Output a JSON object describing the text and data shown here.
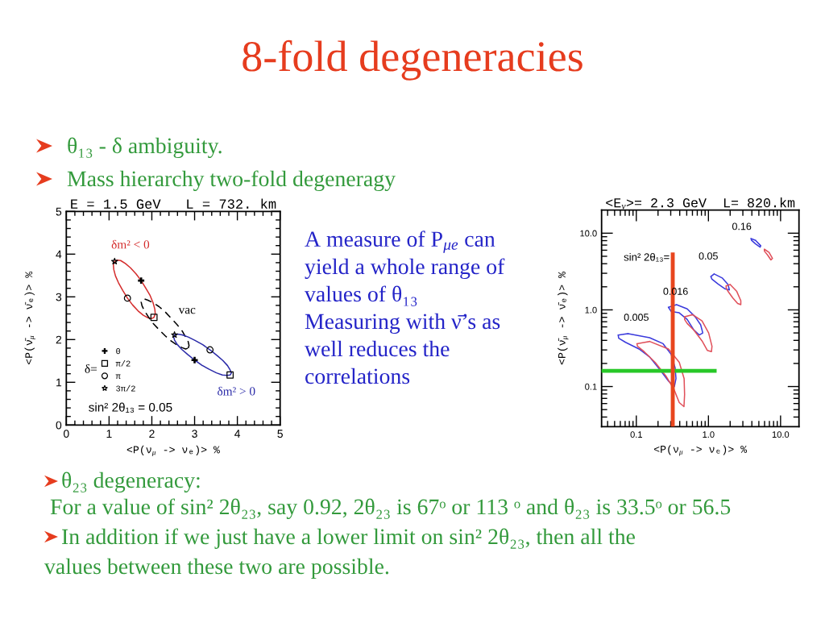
{
  "chart_data": [
    {
      "type": "other",
      "title": "8-fold degeneracies",
      "annotations": [
        "θ₁₃ - δ ambiguity.",
        "Mass hierarchy two-fold degeneragy",
        "A measure of P$_{μe}$ can",
        "yield a whole range of",
        "values of θ₁₃",
        "Measuring with ν̄’s as",
        "well reduces the",
        "correlations",
        "θ₂₃ degeneracy:",
        "For a value of sin² 2θ₂₃, say 0.92, 2θ₂₃ is 67ᵒ or 113 ᵒ and θ₂₃ is 33.5ᵒ or 56.5",
        "In addition if we just have a lower limit on sin² 2θ₂₃, then all the",
        "values between these two are possible."
      ]
    },
    {
      "type": "line",
      "title": "E = 1.5 GeV   L = 732. km",
      "xlabel": "<P(ν$_{μ}$ -> νₑ)> %",
      "ylabel": "<P(ν̄$_{μ}$ -> ν̄ₑ)> %",
      "xlim": [
        0,
        5
      ],
      "ylim": [
        0,
        5
      ],
      "xticks": [
        0,
        {
          "value": 0.2,
          "label": null
        },
        {
          "value": 0.4,
          "label": null
        },
        {
          "value": 0.6,
          "label": null
        },
        {
          "value": 0.8,
          "label": null
        },
        1,
        {
          "value": 1.2,
          "label": null
        },
        {
          "value": 1.4,
          "label": null
        },
        {
          "value": 1.6,
          "label": null
        },
        {
          "value": 1.8,
          "label": null
        },
        2,
        {
          "value": 2.2,
          "label": null
        },
        {
          "value": 2.4,
          "label": null
        },
        {
          "value": 2.6,
          "label": null
        },
        {
          "value": 2.8,
          "label": null
        },
        3,
        {
          "value": 3.2,
          "label": null
        },
        {
          "value": 3.4,
          "label": null
        },
        {
          "value": 3.6,
          "label": null
        },
        {
          "value": 3.8,
          "label": null
        },
        4,
        {
          "value": 4.2,
          "label": null
        },
        {
          "value": 4.4,
          "label": null
        },
        {
          "value": 4.6,
          "label": null
        },
        {
          "value": 4.8,
          "label": null
        },
        5
      ],
      "yticks": [
        0,
        {
          "value": 0.2,
          "label": null
        },
        {
          "value": 0.4,
          "label": null
        },
        {
          "value": 0.6,
          "label": null
        },
        {
          "value": 0.8,
          "label": null
        },
        1,
        {
          "value": 1.2,
          "label": null
        },
        {
          "value": 1.4,
          "label": null
        },
        {
          "value": 1.6,
          "label": null
        },
        {
          "value": 1.8,
          "label": null
        },
        2,
        {
          "value": 2.2,
          "label": null
        },
        {
          "value": 2.4,
          "label": null
        },
        {
          "value": 2.6,
          "label": null
        },
        {
          "value": 2.8,
          "label": null
        },
        3,
        {
          "value": 3.2,
          "label": null
        },
        {
          "value": 3.4,
          "label": null
        },
        {
          "value": 3.6,
          "label": null
        },
        {
          "value": 3.8,
          "label": null
        },
        4,
        {
          "value": 4.2,
          "label": null
        },
        {
          "value": 4.4,
          "label": null
        },
        {
          "value": 4.6,
          "label": null
        },
        {
          "value": 4.8,
          "label": null
        },
        5
      ],
      "series": [
        {
          "name": "δm² < 0",
          "color": "#d42c2c",
          "x": [
            1.75,
            1.86,
            1.96,
            2.03,
            2.07,
            2.08,
            2.05,
            1.99,
            1.91,
            1.8,
            1.68,
            1.55,
            1.43,
            1.32,
            1.22,
            1.15,
            1.11,
            1.1,
            1.13,
            1.19,
            1.27,
            1.38,
            1.5,
            1.63,
            1.75,
            1.86
          ],
          "values": [
            3.38,
            3.2,
            3.03,
            2.86,
            2.71,
            2.6,
            2.52,
            2.49,
            2.51,
            2.57,
            2.67,
            2.81,
            2.97,
            3.15,
            3.33,
            3.49,
            3.64,
            3.76,
            3.83,
            3.86,
            3.85,
            3.78,
            3.68,
            3.54,
            3.38,
            3.2
          ]
        },
        {
          "name": "vac",
          "color": "#000000",
          "line_style": "dashed",
          "x": [
            2.85,
            2.87,
            2.85,
            2.79,
            2.71,
            2.59,
            2.45,
            2.31,
            2.17,
            2.03,
            1.91,
            1.83,
            1.77,
            1.75,
            1.77,
            1.83,
            1.92,
            2.03,
            2.17,
            2.31,
            2.46,
            2.59,
            2.71,
            2.79,
            2.85,
            2.87
          ],
          "values": [
            1.8,
            1.86,
            1.95,
            2.06,
            2.2,
            2.35,
            2.5,
            2.65,
            2.77,
            2.86,
            2.92,
            2.95,
            2.93,
            2.88,
            2.79,
            2.67,
            2.53,
            2.38,
            2.23,
            2.09,
            1.96,
            1.87,
            1.81,
            1.78,
            1.8,
            1.86
          ]
        },
        {
          "name": "δm² > 0",
          "color": "#2a2aa8",
          "x": [
            3.0,
            3.17,
            3.35,
            3.51,
            3.65,
            3.76,
            3.83,
            3.86,
            3.83,
            3.77,
            3.66,
            3.52,
            3.36,
            3.19,
            3.01,
            2.85,
            2.71,
            2.6,
            2.53,
            2.51,
            2.53,
            2.59,
            2.7,
            2.84,
            3.0,
            3.17
          ],
          "values": [
            1.52,
            1.4,
            1.3,
            1.22,
            1.17,
            1.16,
            1.17,
            1.22,
            1.29,
            1.39,
            1.51,
            1.63,
            1.76,
            1.88,
            1.98,
            2.06,
            2.11,
            2.13,
            2.11,
            2.06,
            1.99,
            1.89,
            1.77,
            1.65,
            1.52,
            1.4
          ]
        },
        {
          "name": "0",
          "type": "scatter",
          "marker": "cross",
          "color": "#000000",
          "x": [
            1.75,
            3.0
          ],
          "values": [
            3.38,
            1.52
          ]
        },
        {
          "name": "π/2",
          "type": "scatter",
          "marker": "square",
          "color": "#000000",
          "x": [
            2.05,
            3.83
          ],
          "values": [
            2.52,
            1.17
          ]
        },
        {
          "name": "π",
          "type": "scatter",
          "marker": "circle",
          "color": "#000000",
          "x": [
            1.43,
            3.36
          ],
          "values": [
            2.97,
            1.76
          ]
        },
        {
          "name": "3π/2",
          "type": "scatter",
          "marker": "star",
          "color": "#000000",
          "x": [
            1.13,
            2.53
          ],
          "values": [
            3.83,
            2.11
          ]
        }
      ],
      "legend": "bottom left",
      "legend_title": "δ=",
      "annotations": [
        "sin² 2θ₁₃ = 0.05"
      ]
    },
    {
      "type": "line",
      "title": "<E$_{ν}$>= 2.3 GeV  L= 820.km",
      "xlabel": "<P(ν$_{μ}$ -> νₑ)> %",
      "ylabel": "<P(ν̄$_{μ}$ -> ν̄ₑ)> %",
      "log": "xy",
      "xlim": [
        0.033,
        18
      ],
      "ylim": [
        0.03,
        20
      ],
      "xticks": [
        {
          "value": 0.04,
          "label": null
        },
        {
          "value": 0.05,
          "label": null
        },
        {
          "value": 0.06,
          "label": null
        },
        {
          "value": 0.07,
          "label": null
        },
        {
          "value": 0.08,
          "label": null
        },
        {
          "value": 0.09,
          "label": null
        },
        0.1,
        {
          "value": 0.2,
          "label": null
        },
        {
          "value": 0.3,
          "label": null
        },
        {
          "value": 0.4,
          "label": null
        },
        {
          "value": 0.5,
          "label": null
        },
        {
          "value": 0.6,
          "label": null
        },
        {
          "value": 0.7,
          "label": null
        },
        {
          "value": 0.8,
          "label": null
        },
        {
          "value": 0.9,
          "label": null
        },
        {
          "value": 1,
          "label": "1.0"
        },
        {
          "value": 2,
          "label": null
        },
        {
          "value": 3,
          "label": null
        },
        {
          "value": 4,
          "label": null
        },
        {
          "value": 5,
          "label": null
        },
        {
          "value": 6,
          "label": null
        },
        {
          "value": 7,
          "label": null
        },
        {
          "value": 8,
          "label": null
        },
        {
          "value": 9,
          "label": null
        },
        {
          "value": 10,
          "label": "10.0"
        }
      ],
      "yticks": [
        {
          "value": 0.04,
          "label": null
        },
        {
          "value": 0.05,
          "label": null
        },
        {
          "value": 0.06,
          "label": null
        },
        {
          "value": 0.07,
          "label": null
        },
        {
          "value": 0.08,
          "label": null
        },
        {
          "value": 0.09,
          "label": null
        },
        0.1,
        {
          "value": 0.2,
          "label": null
        },
        {
          "value": 0.3,
          "label": null
        },
        {
          "value": 0.4,
          "label": null
        },
        {
          "value": 0.5,
          "label": null
        },
        {
          "value": 0.6,
          "label": null
        },
        {
          "value": 0.7,
          "label": null
        },
        {
          "value": 0.8,
          "label": null
        },
        {
          "value": 0.9,
          "label": null
        },
        {
          "value": 1,
          "label": "1.0"
        },
        {
          "value": 2,
          "label": null
        },
        {
          "value": 3,
          "label": null
        },
        {
          "value": 4,
          "label": null
        },
        {
          "value": 5,
          "label": null
        },
        {
          "value": 6,
          "label": null
        },
        {
          "value": 7,
          "label": null
        },
        {
          "value": 8,
          "label": null
        },
        {
          "value": 9,
          "label": null
        },
        {
          "value": 10,
          "label": "10.0"
        }
      ],
      "series": [
        {
          "color": "#3a3adc",
          "x": [
            0.056,
            0.077,
            0.153,
            0.235,
            0.304,
            0.345,
            0.355,
            0.337,
            0.279,
            0.216,
            0.153,
            0.109,
            0.071,
            0.057,
            0.056,
            0.077
          ],
          "values": [
            0.47,
            0.49,
            0.434,
            0.362,
            0.263,
            0.176,
            0.127,
            0.1,
            0.118,
            0.162,
            0.243,
            0.309,
            0.377,
            0.427,
            0.47,
            0.49
          ]
        },
        {
          "color": "#e0505a",
          "x": [
            0.102,
            0.153,
            0.279,
            0.394,
            0.46,
            0.467,
            0.458,
            0.394,
            0.332,
            0.256,
            0.182,
            0.129,
            0.104,
            0.102,
            0.153
          ],
          "values": [
            0.362,
            0.387,
            0.309,
            0.207,
            0.127,
            0.0785,
            0.0547,
            0.0617,
            0.0923,
            0.138,
            0.207,
            0.284,
            0.335,
            0.362,
            0.387
          ]
        },
        {
          "color": "#3a3adc",
          "x": [
            0.279,
            0.361,
            0.508,
            0.656,
            0.78,
            0.835,
            0.746,
            0.63,
            0.508,
            0.393,
            0.304,
            0.279,
            0.361
          ],
          "values": [
            1.08,
            1.17,
            1.03,
            0.81,
            0.638,
            0.5,
            0.47,
            0.543,
            0.748,
            0.916,
            0.953,
            1.08,
            1.17
          ]
        },
        {
          "color": "#e0505a",
          "x": [
            0.467,
            0.603,
            0.815,
            1.007,
            1.12,
            1.1,
            0.964,
            0.815,
            0.63,
            0.508,
            0.467,
            0.467,
            0.603
          ],
          "values": [
            0.813,
            0.865,
            0.72,
            0.5,
            0.335,
            0.285,
            0.296,
            0.394,
            0.543,
            0.664,
            0.748,
            0.813,
            0.865
          ]
        },
        {
          "color": "#3a3adc",
          "x": [
            1.08,
            1.2,
            1.55,
            1.87,
            1.95,
            1.68,
            1.36,
            1.12,
            1.08,
            1.2
          ],
          "values": [
            2.72,
            2.94,
            2.61,
            2.14,
            1.82,
            1.89,
            2.17,
            2.51,
            2.72,
            2.94
          ]
        },
        {
          "color": "#e0505a",
          "x": [
            1.76,
            2.0,
            2.47,
            2.81,
            2.81,
            2.54,
            2.18,
            1.87,
            1.76,
            1.76,
            2.0
          ],
          "values": [
            2.05,
            2.14,
            1.74,
            1.32,
            1.17,
            1.21,
            1.43,
            1.74,
            1.94,
            2.05,
            2.14
          ]
        },
        {
          "color": "#3a3adc",
          "x": [
            3.89,
            4.5,
            5.31,
            5.21,
            4.5,
            3.96,
            3.89,
            4.5
          ],
          "values": [
            8.53,
            8.07,
            6.86,
            6.58,
            7.26,
            8.07,
            8.53,
            8.07
          ]
        },
        {
          "color": "#e0505a",
          "x": [
            5.97,
            6.92,
            7.73,
            7.35,
            6.62,
            5.97,
            5.97,
            6.92
          ],
          "values": [
            6.18,
            5.61,
            4.7,
            4.48,
            5.18,
            5.83,
            6.18,
            5.61
          ]
        },
        {
          "color": "#28c828",
          "x": [
            0.033,
            1.22
          ],
          "values": [
            0.16,
            0.16
          ]
        },
        {
          "color": "#e8461e",
          "x": [
            0.32,
            0.32
          ],
          "values": [
            0.03,
            5.3
          ]
        }
      ],
      "annotations": [
        "0.16",
        "sin² 2θ₁₃=",
        "0.05",
        "0.016",
        "0.005"
      ]
    }
  ]
}
